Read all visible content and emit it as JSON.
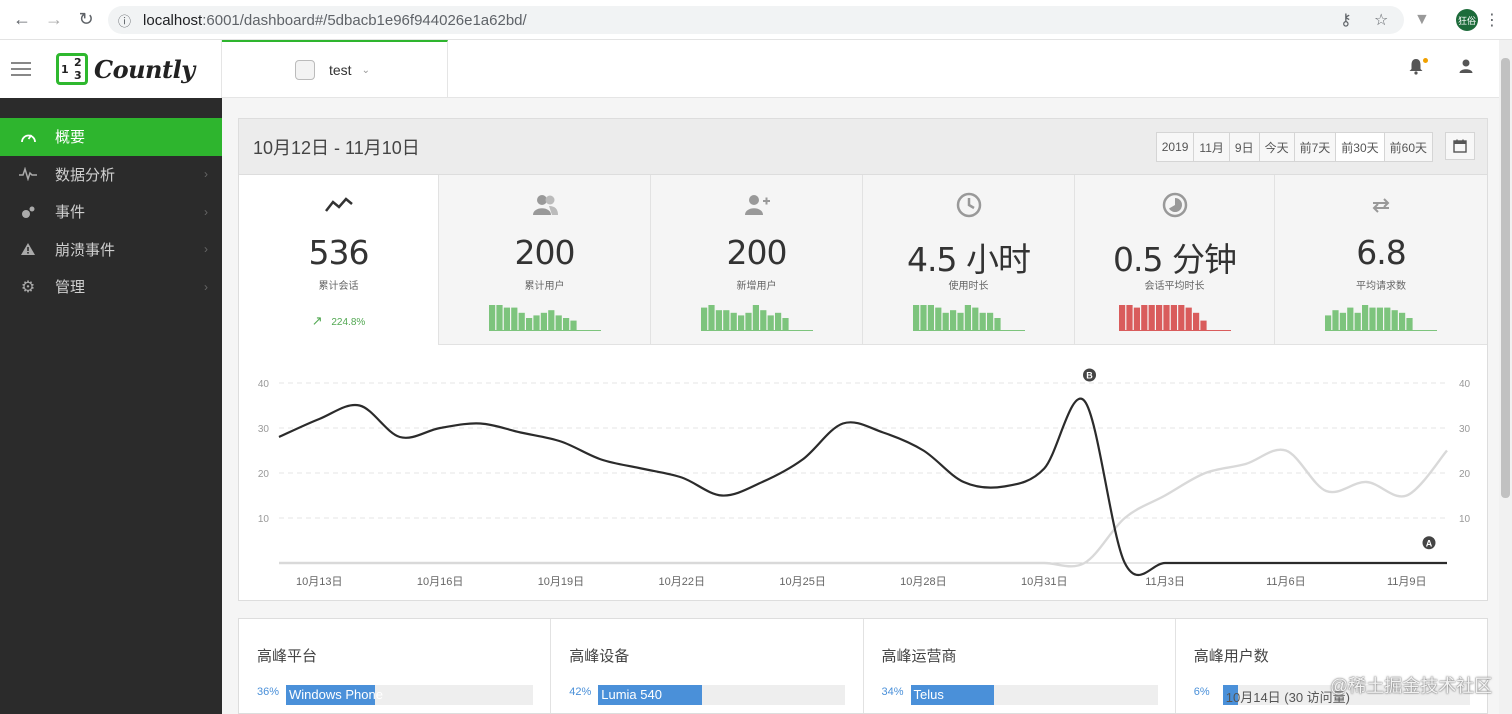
{
  "browser": {
    "url_host": "localhost",
    "url_rest": ":6001/dashboard#/5dbacb1e96f944026e1a62bd/",
    "avatar_text": "狂俗"
  },
  "logo": {
    "text": "Countly",
    "mark_digits": [
      "1",
      "2",
      "3"
    ]
  },
  "sidebar": {
    "items": [
      {
        "label": "概要",
        "icon": "dashboard-icon",
        "active": true
      },
      {
        "label": "数据分析",
        "icon": "pulse-icon"
      },
      {
        "label": "事件",
        "icon": "events-icon"
      },
      {
        "label": "崩溃事件",
        "icon": "warning-icon"
      },
      {
        "label": "管理",
        "icon": "gear-icon"
      }
    ]
  },
  "topbar": {
    "app_name": "test"
  },
  "panel": {
    "date_range": "10月12日 - 11月10日",
    "range_buttons": [
      "2019",
      "11月",
      "9日",
      "今天",
      "前7天",
      "前30天",
      "前60天"
    ],
    "active_range": "前30天"
  },
  "metrics": [
    {
      "value": "536",
      "label": "累计会话",
      "trend": "224.8%",
      "icon": "trend-icon",
      "spark_color": "#7dc47d",
      "spark": []
    },
    {
      "value": "200",
      "label": "累计用户",
      "icon": "users-icon",
      "spark_color": "#7dc47d",
      "spark": [
        10,
        10,
        9,
        9,
        7,
        5,
        6,
        7,
        8,
        6,
        5,
        4
      ]
    },
    {
      "value": "200",
      "label": "新增用户",
      "icon": "add-user-icon",
      "spark_color": "#7dc47d",
      "spark": [
        9,
        10,
        8,
        8,
        7,
        6,
        7,
        10,
        8,
        6,
        7,
        5
      ]
    },
    {
      "value": "4.5",
      "unit": " 小时",
      "label": "使用时长",
      "icon": "clock-icon",
      "spark_color": "#7dc47d",
      "spark": [
        10,
        10,
        10,
        9,
        7,
        8,
        7,
        10,
        9,
        7,
        7,
        5
      ]
    },
    {
      "value": "0.5",
      "unit": " 分钟",
      "label": "会话平均时长",
      "icon": "pie-icon",
      "spark_color": "#d95c5c",
      "spark": [
        10,
        10,
        9,
        10,
        10,
        10,
        10,
        10,
        10,
        9,
        7,
        4
      ]
    },
    {
      "value": "6.8",
      "label": "平均请求数",
      "icon": "transfer-icon",
      "spark_color": "#7dc47d",
      "spark": [
        6,
        8,
        7,
        9,
        7,
        10,
        9,
        9,
        9,
        8,
        7,
        5
      ]
    }
  ],
  "chart_data": {
    "type": "line",
    "x": [
      "10月12日",
      "10月13日",
      "10月14日",
      "10月15日",
      "10月16日",
      "10月17日",
      "10月18日",
      "10月19日",
      "10月20日",
      "10月21日",
      "10月22日",
      "10月23日",
      "10月24日",
      "10月25日",
      "10月26日",
      "10月27日",
      "10月28日",
      "10月29日",
      "10月30日",
      "10月31日",
      "11月1日",
      "11月2日",
      "11月3日",
      "11月4日",
      "11月5日",
      "11月6日",
      "11月7日",
      "11月8日",
      "11月9日",
      "11月10日"
    ],
    "tick_labels": [
      "10月13日",
      "10月16日",
      "10月19日",
      "10月22日",
      "10月25日",
      "10月28日",
      "10月31日",
      "11月3日",
      "11月6日",
      "11月9日"
    ],
    "ylim": [
      0,
      40
    ],
    "yticks": [
      10,
      20,
      30,
      40
    ],
    "series": [
      {
        "marker": "B",
        "color": "#2b2b2b",
        "values": [
          28,
          32,
          35,
          28,
          30,
          31,
          29,
          27,
          23,
          21,
          19,
          15,
          18,
          23,
          31,
          29,
          25,
          18,
          17,
          21,
          36,
          0,
          0,
          0,
          0,
          0,
          0,
          0,
          0,
          0
        ]
      },
      {
        "marker": "A",
        "color": "#d9d9d9",
        "values": [
          0,
          0,
          0,
          0,
          0,
          0,
          0,
          0,
          0,
          0,
          0,
          0,
          0,
          0,
          0,
          0,
          0,
          0,
          0,
          0,
          0,
          10,
          15,
          20,
          22,
          25,
          16,
          18,
          15,
          25
        ]
      }
    ]
  },
  "bottom_cards": [
    {
      "title": "高峰平台",
      "pct": "36%",
      "value": "Windows Phone",
      "fill": 0.36
    },
    {
      "title": "高峰设备",
      "pct": "42%",
      "value": "Lumia 540",
      "fill": 0.42
    },
    {
      "title": "高峰运营商",
      "pct": "34%",
      "value": "Telus",
      "fill": 0.34
    },
    {
      "title": "高峰用户数",
      "pct": "6%",
      "value": "10月14日 (30 访问量)",
      "fill": 0.06
    }
  ],
  "watermark": "@稀土掘金技术社区"
}
